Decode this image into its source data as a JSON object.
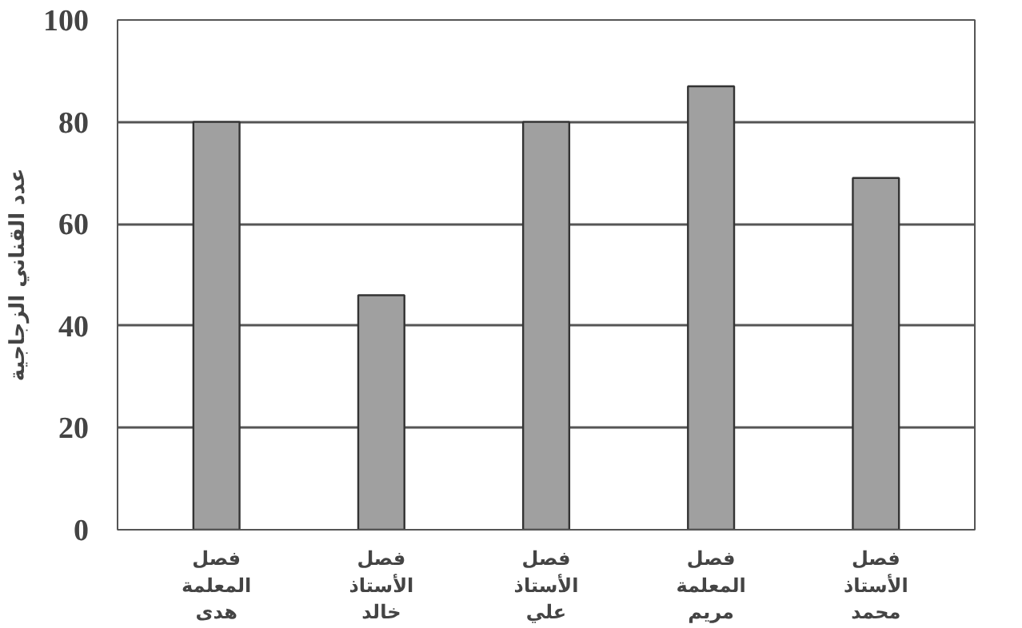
{
  "chart_data": {
    "type": "bar",
    "ylabel": "عدد القناني الزجاجية",
    "categories": [
      "فصل\nالمعلمة\nهدى",
      "فصل\nالأستاذ\nخالد",
      "فصل\nالأستاذ\nعلي",
      "فصل\nالمعلمة\nمريم",
      "فصل\nالأستاذ\nمحمد"
    ],
    "values": [
      80,
      46,
      80,
      87,
      69
    ],
    "color": "#a0a0a0",
    "ylim": [
      0,
      100
    ],
    "yticks": [
      0,
      20,
      40,
      60,
      80,
      100
    ],
    "grid": "y"
  }
}
